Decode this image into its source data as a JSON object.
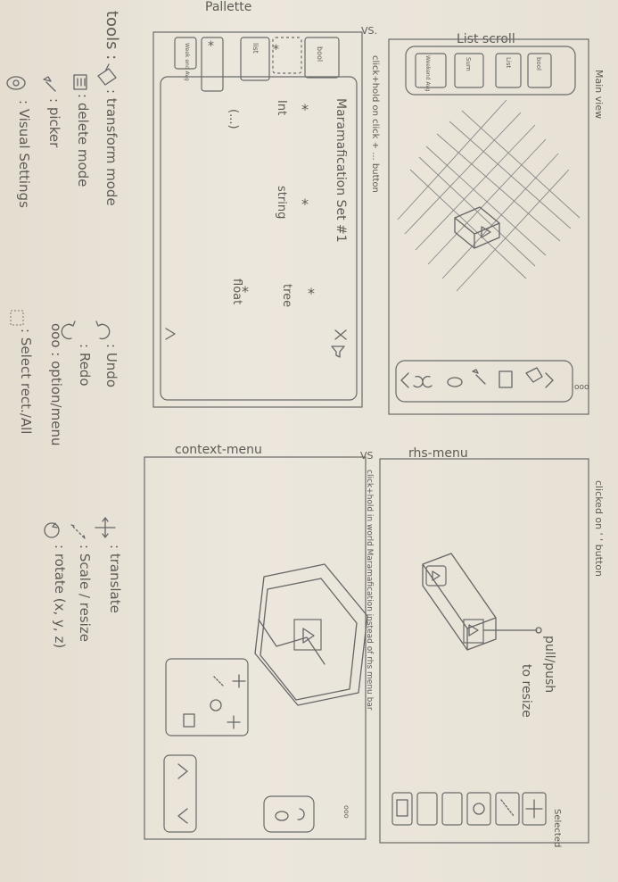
{
  "headings": {
    "pallette": "Pallette",
    "vs1": "VS.",
    "list_scroll": "List scroll",
    "main_view": "Main view",
    "context_menu": "context-menu",
    "vs2": "VS",
    "rhs_menu": "rhs-menu"
  },
  "notes": {
    "click_hold_pallette": "click+hold on click + ... button",
    "clicked_on": "clicked on ' ' button",
    "click_hold_world": "click+hold in world Maramafication instead of rhs menu bar",
    "pull_push": "pull/push",
    "to_resize": "to resize",
    "selected": "Selected",
    "triple_dot": "ooo"
  },
  "pallette_panel": {
    "title": "Maramafication Set #1",
    "items": [
      "*",
      "*",
      "*",
      "*",
      "*",
      "*"
    ],
    "labels": [
      "Int",
      "string",
      "tree",
      "float",
      "(...)"
    ],
    "tabs": [
      "bool",
      "list",
      "Week end Avg"
    ]
  },
  "list_scroll_panel": {
    "items": [
      "bool",
      "List",
      "Sum",
      "Weekend Avg"
    ]
  },
  "legend": {
    "tools_label": "tools :",
    "left_col": [
      {
        "icon": "transform-icon",
        "text": ": transform mode"
      },
      {
        "icon": "trash-icon",
        "text": ": delete mode"
      },
      {
        "icon": "picker-icon",
        "text": ": picker"
      },
      {
        "icon": "eye-icon",
        "text": ": Visual Settings"
      }
    ],
    "mid_col": [
      {
        "icon": "undo-icon",
        "text": ": Undo"
      },
      {
        "icon": "redo-icon",
        "text": ": Redo"
      },
      {
        "icon": "triple-dot-icon",
        "text": "ooo : option/menu"
      },
      {
        "icon": "select-rect-icon",
        "text": ": Select rect./All"
      }
    ],
    "right_col": [
      {
        "icon": "translate-icon",
        "text": ": translate"
      },
      {
        "icon": "scale-icon",
        "text": ": Scale / resize"
      },
      {
        "icon": "rotate-icon",
        "text": ": rotate (x, y, z)"
      }
    ]
  }
}
